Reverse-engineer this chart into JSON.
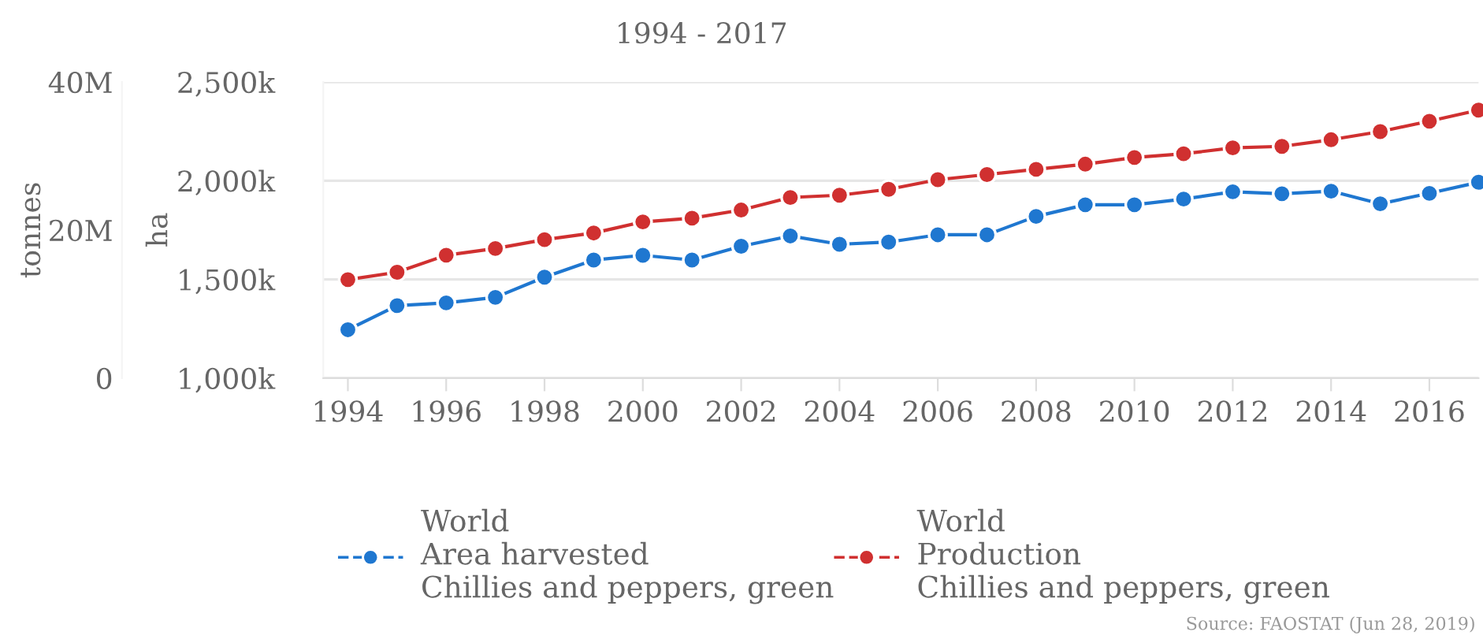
{
  "chart_data": {
    "type": "line",
    "title": "1994 - 2017",
    "x": [
      1994,
      1995,
      1996,
      1997,
      1998,
      1999,
      2000,
      2001,
      2002,
      2003,
      2004,
      2005,
      2006,
      2007,
      2008,
      2009,
      2010,
      2011,
      2012,
      2013,
      2014,
      2015,
      2016,
      2017
    ],
    "series": [
      {
        "name": "World\nArea harvested\nChillies and peppers, green",
        "color": "#1f77d0",
        "values": [
          1245000,
          1367000,
          1381000,
          1409000,
          1511000,
          1598000,
          1622000,
          1598000,
          1668000,
          1720000,
          1678000,
          1689000,
          1726000,
          1726000,
          1819000,
          1878000,
          1878000,
          1907000,
          1944000,
          1934000,
          1947000,
          1883000,
          1936000,
          1992000
        ]
      },
      {
        "name": "World\nProduction\nChillies and peppers, green",
        "color": "#d03030",
        "axis": "y2",
        "values": [
          13300000,
          14300000,
          16600000,
          17500000,
          18700000,
          19600000,
          21100000,
          21600000,
          22700000,
          24400000,
          24700000,
          25500000,
          26800000,
          27500000,
          28200000,
          28900000,
          29800000,
          30300000,
          31100000,
          31300000,
          32200000,
          33300000,
          34700000,
          36200000
        ]
      }
    ],
    "xlim": [
      1993.5,
      2017
    ],
    "xticks": [
      1994,
      1996,
      1998,
      2000,
      2002,
      2004,
      2006,
      2008,
      2010,
      2012,
      2014,
      2016
    ],
    "ylabel": "ha",
    "ylim": [
      1000000,
      2500000
    ],
    "yticks": [
      {
        "value": 1000000,
        "label": "1,000k"
      },
      {
        "value": 1500000,
        "label": "1,500k"
      },
      {
        "value": 2000000,
        "label": "2,000k"
      },
      {
        "value": 2500000,
        "label": "2,500k"
      }
    ],
    "y2label": "tonnes",
    "y2lim": [
      0,
      40000000
    ],
    "y2ticks": [
      0,
      {
        "value": 20000000,
        "label": "20M"
      },
      {
        "value": 40000000,
        "label": "40M"
      }
    ],
    "grid": "y",
    "legend": "bottom",
    "marker": "circle",
    "line_style": "solid",
    "annotations": [
      "Source: FAOSTAT (Jun 28, 2019)"
    ]
  }
}
